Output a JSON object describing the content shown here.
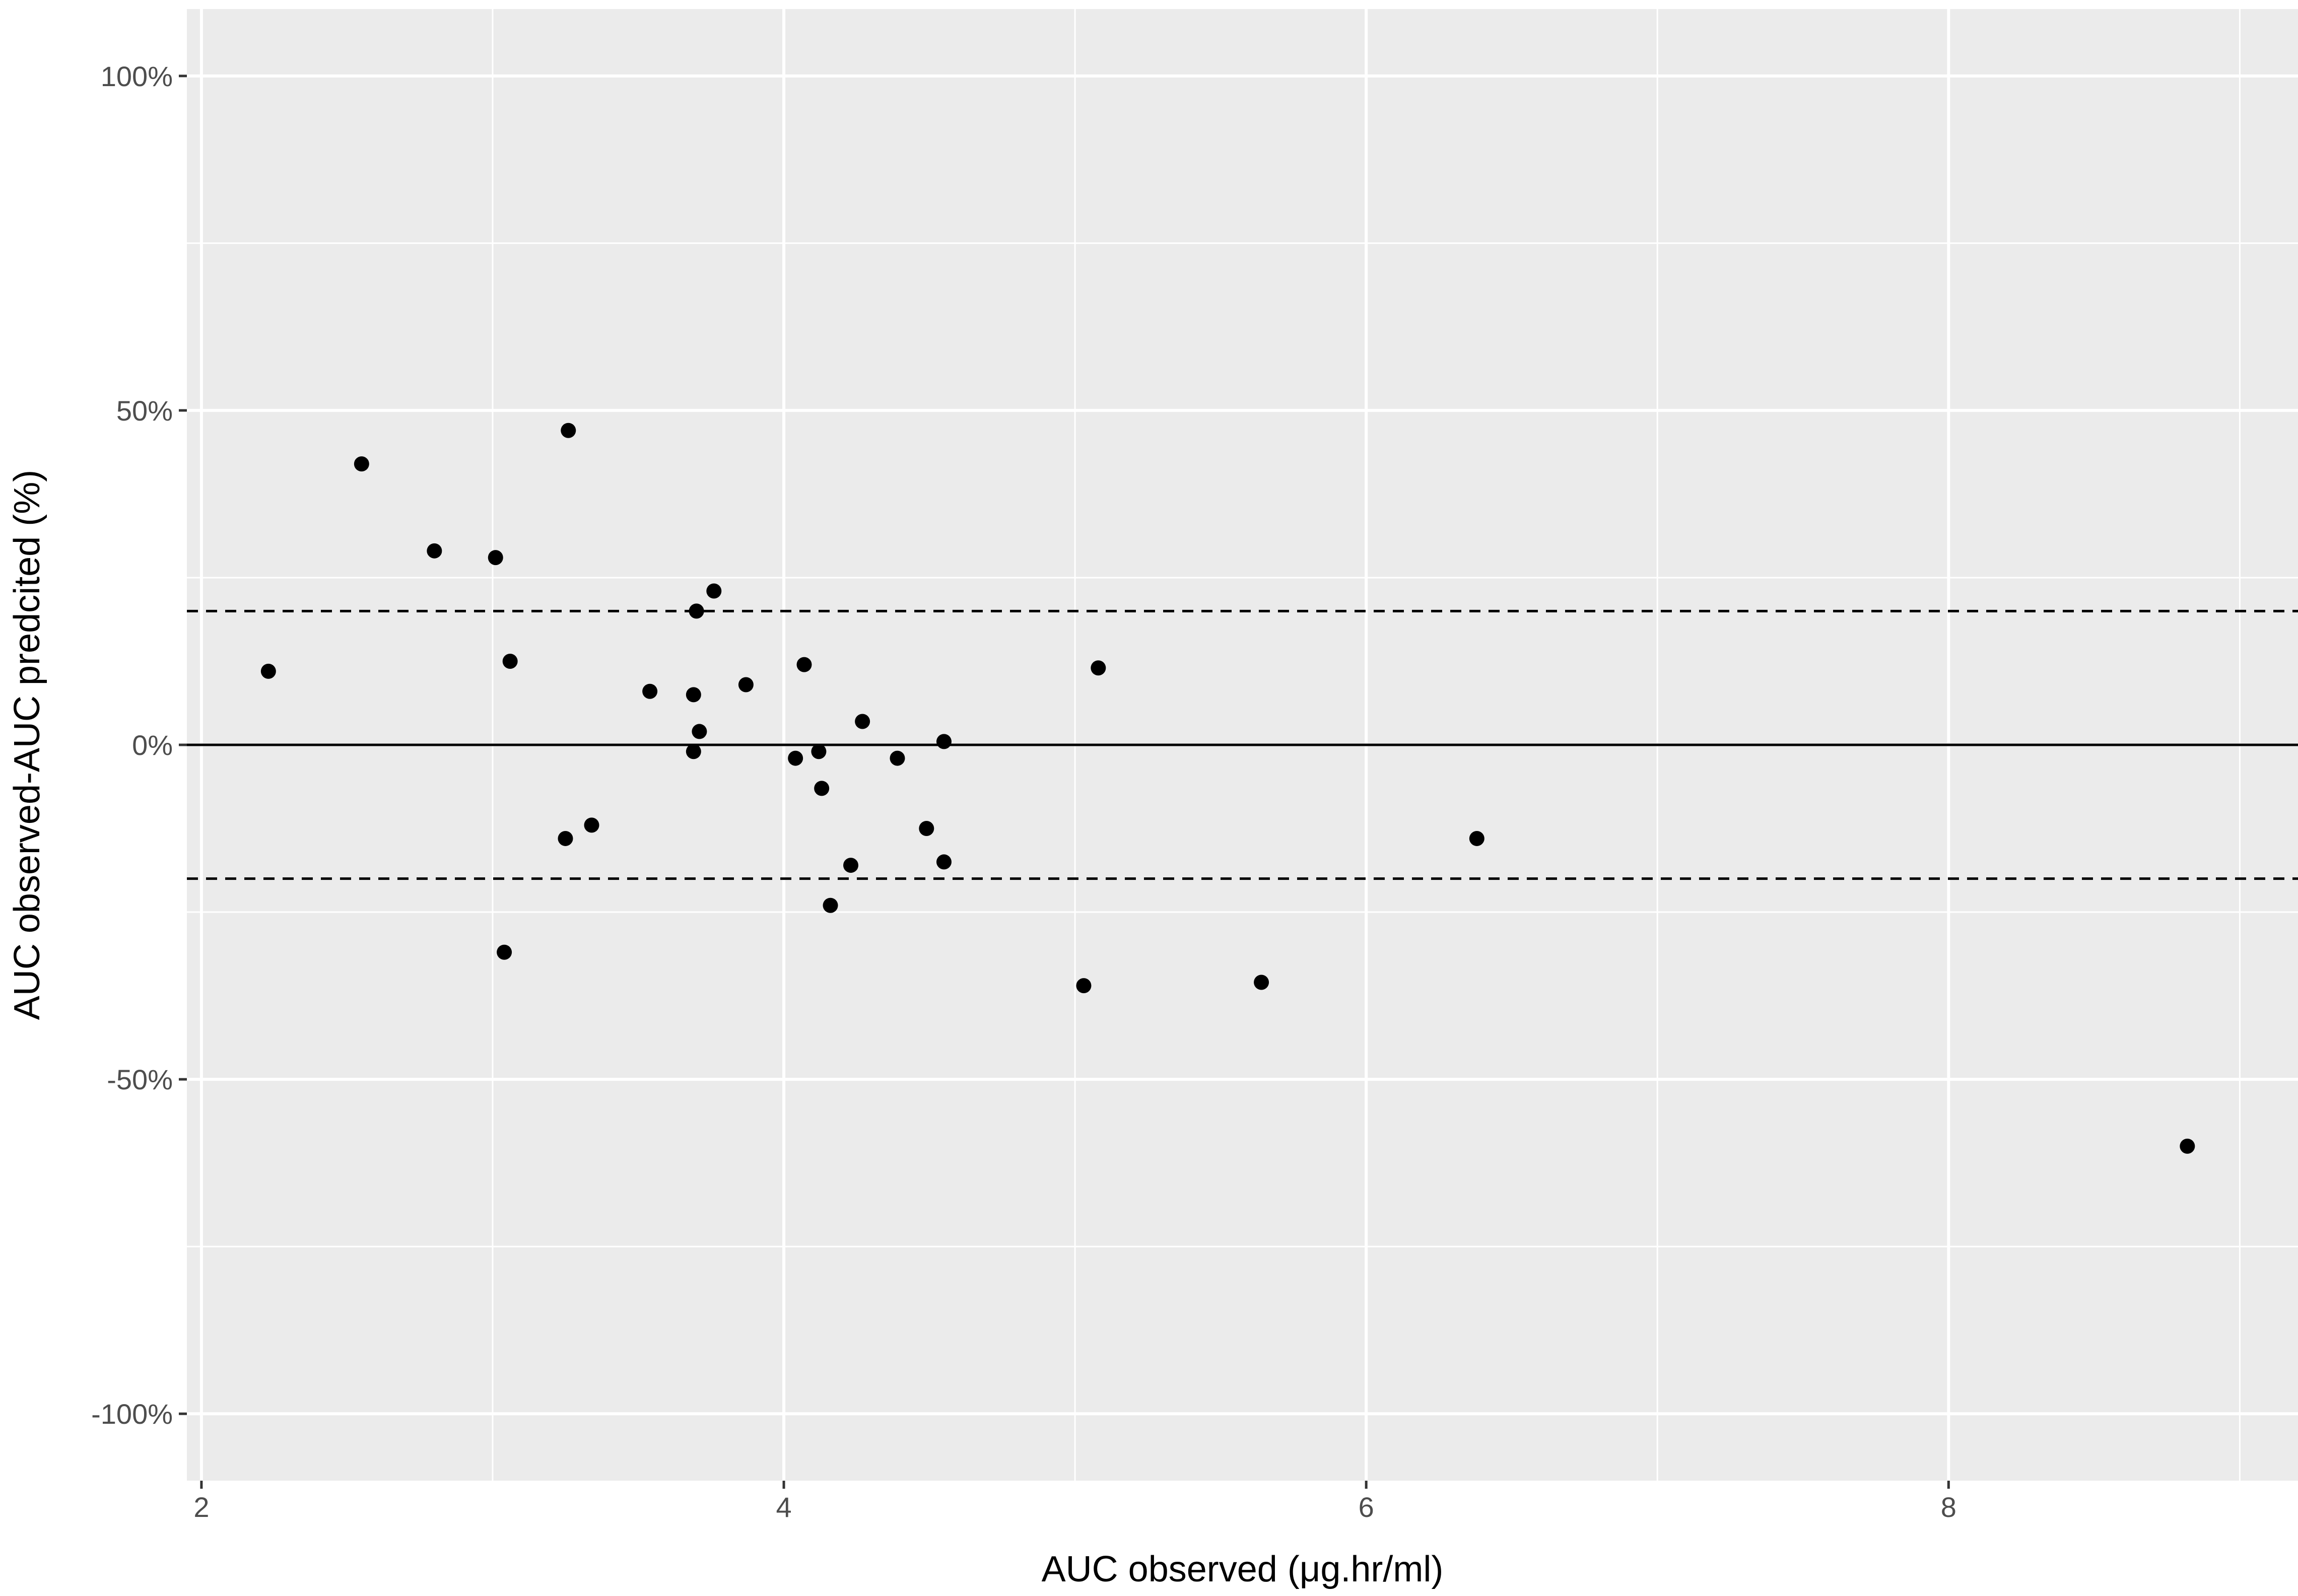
{
  "chart_data": {
    "type": "scatter",
    "xlabel": "AUC observed (μg.hr/ml)",
    "ylabel": "AUC observed-AUC predcited (%)",
    "xlim": [
      1.95,
      9.2
    ],
    "ylim": [
      -110,
      110
    ],
    "x_ticks": [
      2,
      4,
      6,
      8
    ],
    "x_tick_labels": [
      "2",
      "4",
      "6",
      "8"
    ],
    "y_ticks": [
      -100,
      -50,
      0,
      50,
      100
    ],
    "y_tick_labels": [
      "-100%",
      "-50%",
      "0%",
      "50%",
      "100%"
    ],
    "grid": true,
    "background": "#ebebeb",
    "grid_color": "#ffffff",
    "point_color": "#000000",
    "reference_lines": [
      {
        "y": 0,
        "style": "solid"
      },
      {
        "y": 20,
        "style": "dashed"
      },
      {
        "y": -20,
        "style": "dashed"
      }
    ],
    "points": [
      {
        "x": 2.23,
        "y": 11
      },
      {
        "x": 2.55,
        "y": 42
      },
      {
        "x": 2.8,
        "y": 29
      },
      {
        "x": 3.01,
        "y": 28
      },
      {
        "x": 3.04,
        "y": -31
      },
      {
        "x": 3.06,
        "y": 12.5
      },
      {
        "x": 3.25,
        "y": -14
      },
      {
        "x": 3.26,
        "y": 47
      },
      {
        "x": 3.34,
        "y": -12
      },
      {
        "x": 3.54,
        "y": 8
      },
      {
        "x": 3.69,
        "y": 7.5
      },
      {
        "x": 3.69,
        "y": -1
      },
      {
        "x": 3.7,
        "y": 20
      },
      {
        "x": 3.71,
        "y": 2
      },
      {
        "x": 3.76,
        "y": 23
      },
      {
        "x": 3.87,
        "y": 9
      },
      {
        "x": 4.04,
        "y": -2
      },
      {
        "x": 4.07,
        "y": 12
      },
      {
        "x": 4.12,
        "y": -1
      },
      {
        "x": 4.13,
        "y": -6.5
      },
      {
        "x": 4.16,
        "y": -24
      },
      {
        "x": 4.23,
        "y": -18
      },
      {
        "x": 4.27,
        "y": 3.5
      },
      {
        "x": 4.39,
        "y": -2
      },
      {
        "x": 4.49,
        "y": -12.5
      },
      {
        "x": 4.55,
        "y": -17.5
      },
      {
        "x": 4.55,
        "y": 0.5
      },
      {
        "x": 5.03,
        "y": -36
      },
      {
        "x": 5.08,
        "y": 11.5
      },
      {
        "x": 5.64,
        "y": -35.5
      },
      {
        "x": 6.38,
        "y": -14
      },
      {
        "x": 8.82,
        "y": -60
      }
    ]
  }
}
